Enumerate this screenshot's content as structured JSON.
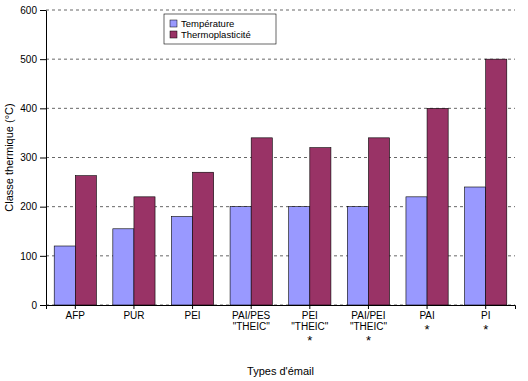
{
  "chart_data": {
    "type": "bar",
    "categories": [
      "AFP",
      "PUR",
      "PEI",
      "PAI/PES\n\"THEIC\"",
      "PEI\n\"THEIC\"\n*",
      "PAI/PEI\n\"THEIC\"\n*",
      "PAI\n\n*",
      "PI\n\n*"
    ],
    "series": [
      {
        "name": "Température",
        "color": "#9999ff",
        "values": [
          120,
          155,
          180,
          200,
          200,
          200,
          220,
          240
        ]
      },
      {
        "name": "Thermoplasticité",
        "color": "#993366",
        "values": [
          263,
          220,
          270,
          340,
          320,
          340,
          400,
          500
        ]
      }
    ],
    "x_label": "Types d'émail",
    "y_label": "Classe thermique (°C)",
    "ylim": [
      0,
      600
    ],
    "yticks": [
      0,
      100,
      200,
      300,
      400,
      500,
      600
    ],
    "grid": true,
    "legend": "upper left"
  }
}
